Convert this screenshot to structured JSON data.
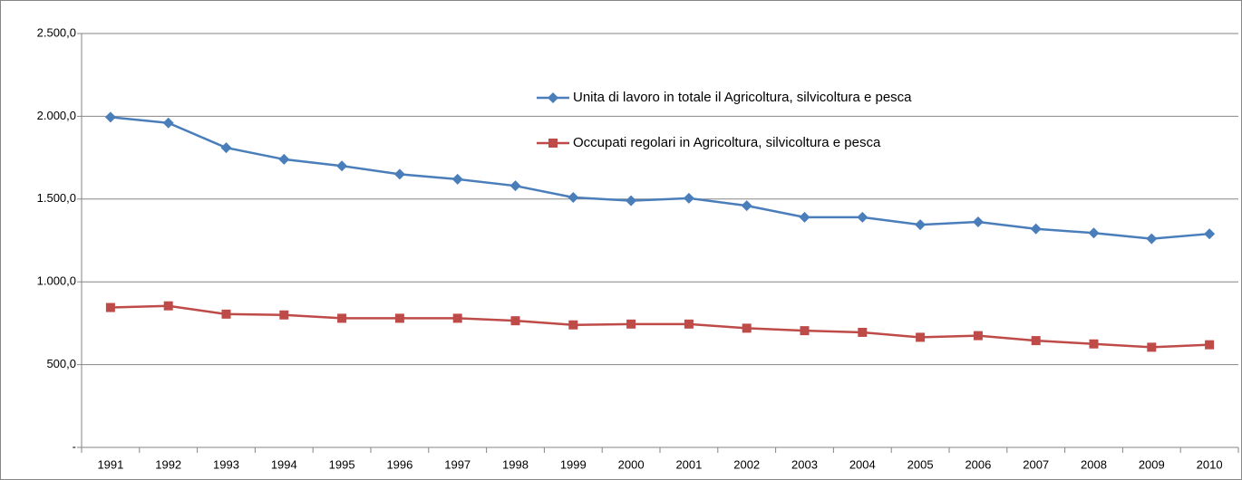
{
  "chart_data": {
    "type": "line",
    "categories": [
      "1991",
      "1992",
      "1993",
      "1994",
      "1995",
      "1996",
      "1997",
      "1998",
      "1999",
      "2000",
      "2001",
      "2002",
      "2003",
      "2004",
      "2005",
      "2006",
      "2007",
      "2008",
      "2009",
      "2010"
    ],
    "series": [
      {
        "name": "Unita di lavoro in totale il Agricoltura, silvicoltura e pesca",
        "color": "#4a7ebb",
        "marker": "diamond",
        "values": [
          1995,
          1960,
          1810,
          1740,
          1700,
          1650,
          1620,
          1580,
          1510,
          1490,
          1505,
          1460,
          1390,
          1390,
          1345,
          1362,
          1320,
          1295,
          1260,
          1290
        ]
      },
      {
        "name": "Occupati regolari in Agricoltura, silvicoltura e pesca",
        "color": "#be4b48",
        "marker": "square",
        "values": [
          845,
          855,
          805,
          800,
          780,
          780,
          780,
          765,
          740,
          745,
          745,
          720,
          705,
          695,
          665,
          675,
          645,
          625,
          605,
          620
        ]
      }
    ],
    "ylim": [
      0,
      2500
    ],
    "yticks": [
      {
        "value": 0,
        "label": "-"
      },
      {
        "value": 500,
        "label": "500,0"
      },
      {
        "value": 1000,
        "label": "1.000,0"
      },
      {
        "value": 1500,
        "label": "1.500,0"
      },
      {
        "value": 2000,
        "label": "2.000,0"
      },
      {
        "value": 2500,
        "label": "2.500,0"
      }
    ],
    "grid": true,
    "legend": "top-center"
  }
}
